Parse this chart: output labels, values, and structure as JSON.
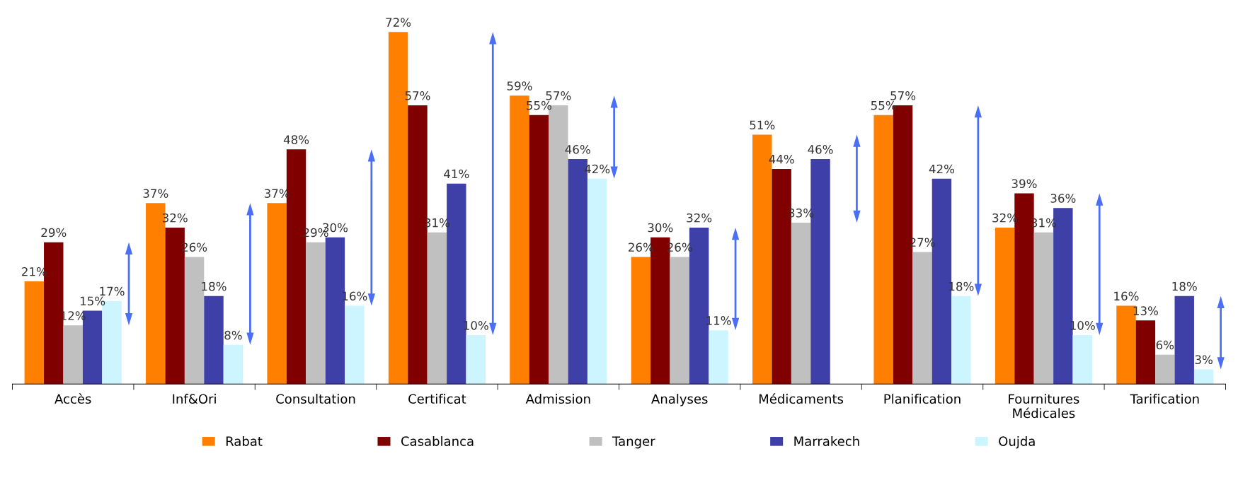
{
  "chart_data": {
    "type": "bar",
    "categories": [
      "Accès",
      "Inf&Ori",
      "Consultation",
      "Certificat",
      "Admission",
      "Analyses",
      "Médicaments",
      "Planification",
      "Fournitures\nMédicales",
      "Tarification"
    ],
    "series": [
      {
        "name": "Rabat",
        "color": "#ff7f00",
        "values": [
          21,
          37,
          37,
          72,
          59,
          26,
          51,
          55,
          32,
          16
        ],
        "value_labels": [
          "21%",
          "37%",
          "37%",
          "72%",
          "59%",
          "26%",
          "51%",
          "55%",
          "32%",
          "16%"
        ]
      },
      {
        "name": "Casablanca",
        "color": "#800000",
        "values": [
          29,
          32,
          48,
          57,
          55,
          30,
          44,
          57,
          39,
          13
        ],
        "value_labels": [
          "29%",
          "32%",
          "48%",
          "57%",
          "55%",
          "30%",
          "44%",
          "57%",
          "39%",
          "13%"
        ]
      },
      {
        "name": "Tanger",
        "color": "#c0c0c0",
        "values": [
          12,
          26,
          29,
          31,
          57,
          26,
          33,
          27,
          31,
          6
        ],
        "value_labels": [
          "12%",
          "26%",
          "29%",
          "31%",
          "57%",
          "26%",
          "33%",
          "27%",
          "31%",
          "6%"
        ]
      },
      {
        "name": "Marrakech",
        "color": "#3f3fa8",
        "values": [
          15,
          18,
          30,
          41,
          46,
          32,
          46,
          42,
          36,
          18
        ],
        "value_labels": [
          "15%",
          "18%",
          "30%",
          "41%",
          "46%",
          "32%",
          "46%",
          "42%",
          "36%",
          "18%"
        ]
      },
      {
        "name": "Oujda",
        "color": "#ccf5ff",
        "values": [
          17,
          8,
          16,
          10,
          42,
          11,
          null,
          18,
          10,
          3
        ],
        "value_labels": [
          "17%",
          "8%",
          "16%",
          "10%",
          "42%",
          "11%",
          null,
          "18%",
          "10%",
          "3%"
        ]
      }
    ],
    "legend": "bottom"
  }
}
